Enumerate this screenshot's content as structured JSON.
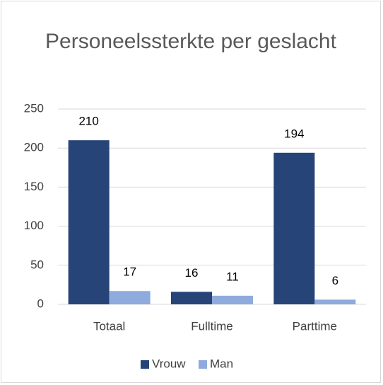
{
  "chart_data": {
    "type": "bar",
    "title": "Personeelssterkte per geslacht",
    "categories": [
      "Totaal",
      "Fulltime",
      "Parttime"
    ],
    "series": [
      {
        "name": "Vrouw",
        "color": "#264478",
        "values": [
          210,
          16,
          194
        ]
      },
      {
        "name": "Man",
        "color": "#8faadc",
        "values": [
          17,
          11,
          6
        ]
      }
    ],
    "ylim": [
      0,
      250
    ],
    "yticks": [
      0,
      50,
      100,
      150,
      200,
      250
    ],
    "grid": true,
    "legend": "bottom"
  }
}
